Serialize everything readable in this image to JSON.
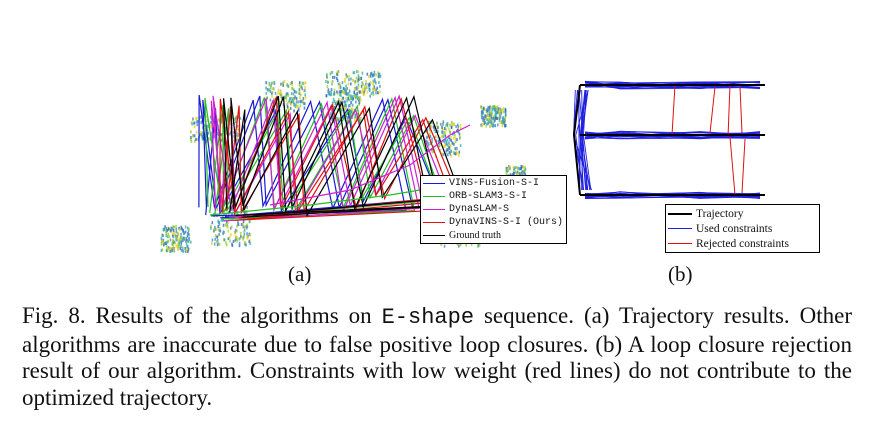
{
  "figure": {
    "subfigures": [
      {
        "label": "(a)",
        "legend": [
          {
            "text": "VINS-Fusion-S-I",
            "color": "#1a1ad6"
          },
          {
            "text": "ORB-SLAM3-S-I",
            "color": "#22c022"
          },
          {
            "text": "DynaSLAM-S",
            "color": "#d020d0"
          },
          {
            "text": "DynaVINS-S-I (Ours)",
            "color": "#e01010"
          },
          {
            "text": "Ground truth",
            "color": "#000000"
          }
        ]
      },
      {
        "label": "(b)",
        "legend": [
          {
            "text": "Trajectory",
            "color": "#000000"
          },
          {
            "text": "Used constraints",
            "color": "#2020e0"
          },
          {
            "text": "Rejected constraints",
            "color": "#e01010"
          }
        ]
      }
    ],
    "caption": {
      "prefix": "Fig. 8. Results of the algorithms on",
      "sequence": "E-shape",
      "suffix": "sequence. (a) Trajectory results. Other algorithms are inaccurate due to false positive loop closures. (b) A loop closure rejection result of our algorithm. Constraints with low weight (red lines) do not contribute to the optimized trajectory."
    }
  }
}
